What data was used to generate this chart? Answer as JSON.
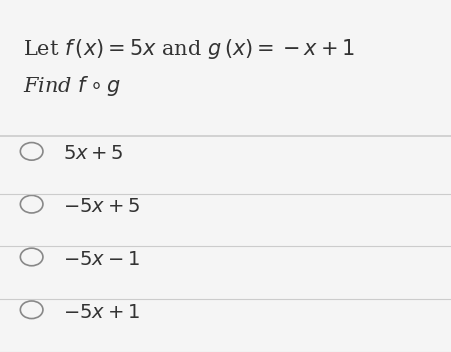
{
  "background_color": "#f5f5f5",
  "line1": "Let $f\\,(x) = 5x$ and $g\\,(x) = -x + 1$",
  "line2": "Find $f \\circ g$",
  "options": [
    "$5x + 5$",
    "$-5x + 5$",
    "$-5x - 1$",
    "$-5x + 1$"
  ],
  "divider_color": "#cccccc",
  "text_color": "#333333",
  "circle_color": "#888888",
  "font_size_header": 15,
  "font_size_options": 14
}
